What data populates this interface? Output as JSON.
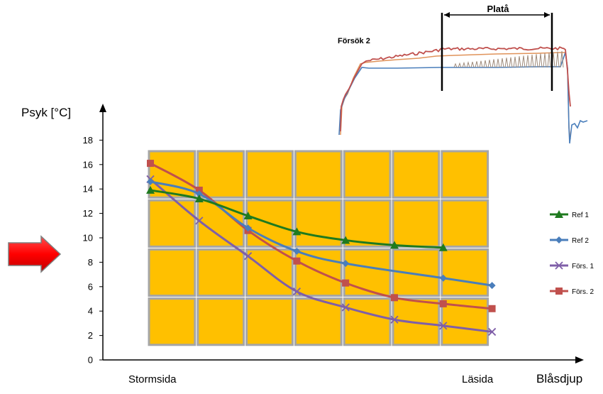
{
  "chart_data": {
    "type": "line",
    "ylabel": "Psyk [°C]",
    "xlabel": "Blåsdjup",
    "x_start_label": "Stormsida",
    "x_end_label": "Läsida",
    "ylim": [
      0,
      18
    ],
    "yticks": [
      0,
      2,
      4,
      6,
      8,
      10,
      12,
      14,
      16,
      18
    ],
    "x": [
      1,
      2,
      3,
      4,
      5,
      6,
      7,
      8
    ],
    "grid": false,
    "legend_position": "right",
    "series": [
      {
        "name": "Ref 1",
        "color": "#1f7a1f",
        "marker": "triangle",
        "values": [
          13.9,
          13.2,
          11.8,
          10.5,
          9.8,
          9.4,
          9.2,
          null
        ]
      },
      {
        "name": "Ref 2",
        "color": "#4a7ebb",
        "marker": "diamond",
        "values": [
          14.6,
          13.6,
          10.8,
          8.9,
          7.9,
          null,
          6.7,
          6.1
        ]
      },
      {
        "name": "Förs. 1",
        "color": "#7f5fa8",
        "marker": "x",
        "values": [
          14.8,
          11.4,
          8.5,
          5.6,
          4.3,
          3.3,
          2.8,
          2.3
        ]
      },
      {
        "name": "Förs. 2",
        "color": "#c0504d",
        "marker": "square",
        "values": [
          16.1,
          13.9,
          10.6,
          8.1,
          6.3,
          5.1,
          4.6,
          4.2
        ]
      }
    ],
    "background_panels": {
      "rows": 4,
      "cols": 7,
      "fill": "#ffc000",
      "border": "#a6a6a6"
    }
  },
  "inset": {
    "title": "Försök 2",
    "bracket_label": "Platå"
  },
  "arrow": {
    "color": "#ff0000",
    "icon": "right-arrow-icon"
  }
}
